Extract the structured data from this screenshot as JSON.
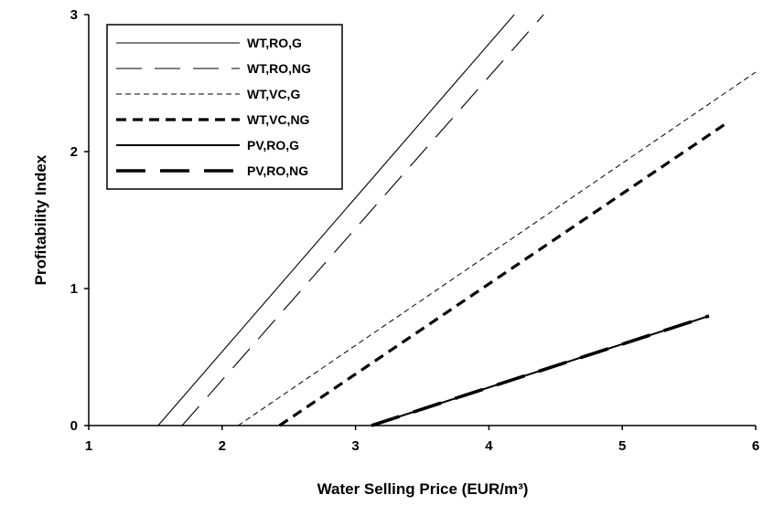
{
  "chart_data": {
    "type": "line",
    "title": "",
    "xlabel": "Water Selling Price (EUR/m³)",
    "ylabel": "Profitability Index",
    "xlim": [
      1,
      6
    ],
    "ylim": [
      0,
      3
    ],
    "x_ticks": [
      "1",
      "2",
      "3",
      "4",
      "5",
      "6"
    ],
    "y_ticks": [
      "0",
      "1",
      "2",
      "3"
    ],
    "grid": false,
    "legend_position": "top-left",
    "series": [
      {
        "name": "WT,RO,G",
        "style": "thin-solid",
        "color": "#000000",
        "x": [
          1.52,
          4.19
        ],
        "y": [
          0,
          3
        ]
      },
      {
        "name": "WT,RO,NG",
        "style": "long-dash-thin",
        "color": "#000000",
        "x": [
          1.7,
          4.41
        ],
        "y": [
          0,
          3
        ]
      },
      {
        "name": "WT,VC,G",
        "style": "short-dash-thin",
        "color": "#000000",
        "x": [
          2.12,
          6.0
        ],
        "y": [
          0,
          2.58
        ]
      },
      {
        "name": "WT,VC,NG",
        "style": "dashed-thick",
        "color": "#000000",
        "x": [
          2.43,
          5.77
        ],
        "y": [
          0,
          2.2
        ]
      },
      {
        "name": "PV,RO,G",
        "style": "solid-medium",
        "color": "#000000",
        "x": [
          3.12,
          5.65
        ],
        "y": [
          0,
          0.8
        ]
      },
      {
        "name": "PV,RO,NG",
        "style": "long-dash-thick",
        "color": "#000000",
        "x": [
          3.12,
          5.65
        ],
        "y": [
          0,
          0.8
        ]
      }
    ]
  }
}
